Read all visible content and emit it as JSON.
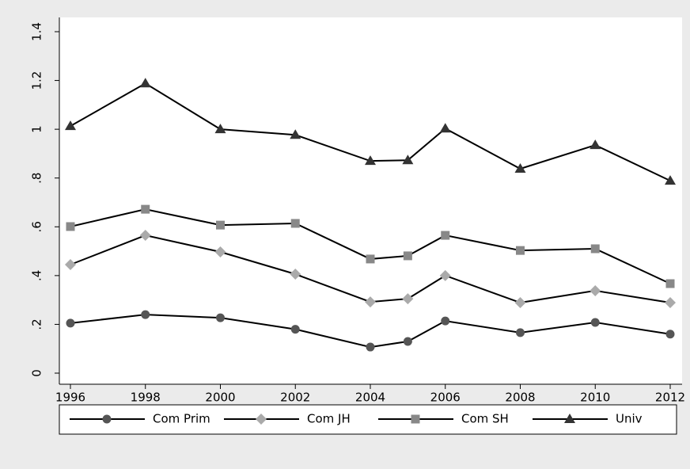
{
  "chart_data": {
    "type": "line",
    "x": [
      1996,
      1998,
      2000,
      2002,
      2004,
      2005,
      2006,
      2008,
      2010,
      2012
    ],
    "series": [
      {
        "name": "Com Prim",
        "color": "#555555",
        "marker": "circle",
        "values": [
          0.205,
          0.24,
          0.227,
          0.18,
          0.107,
          0.13,
          0.214,
          0.166,
          0.208,
          0.16
        ]
      },
      {
        "name": "Com JH",
        "color": "#aaaaaa",
        "marker": "diamond",
        "values": [
          0.445,
          0.565,
          0.497,
          0.406,
          0.292,
          0.305,
          0.4,
          0.289,
          0.338,
          0.289
        ]
      },
      {
        "name": "Com SH",
        "color": "#888888",
        "marker": "square",
        "values": [
          0.601,
          0.672,
          0.607,
          0.614,
          0.468,
          0.481,
          0.565,
          0.503,
          0.51,
          0.367
        ]
      },
      {
        "name": "Univ",
        "color": "#333333",
        "marker": "triangle",
        "values": [
          1.013,
          1.188,
          1.0,
          0.977,
          0.87,
          0.873,
          1.003,
          0.838,
          0.935,
          0.789
        ]
      }
    ],
    "line_color": "#000000",
    "xlim": [
      1996,
      2012
    ],
    "xticks": [
      1996,
      1998,
      2000,
      2002,
      2004,
      2006,
      2008,
      2010,
      2012
    ],
    "ylim": [
      0,
      1.4
    ],
    "yticks": [
      0,
      {
        "value": 0.2,
        "label": ".2"
      },
      {
        "value": 0.4,
        "label": ".4"
      },
      {
        "value": 0.6,
        "label": ".6"
      },
      {
        "value": 0.8,
        "label": ".8"
      },
      1,
      {
        "value": 1.2,
        "label": "1.2"
      },
      {
        "value": 1.4,
        "label": "1.4"
      }
    ],
    "legend": "bottom"
  }
}
